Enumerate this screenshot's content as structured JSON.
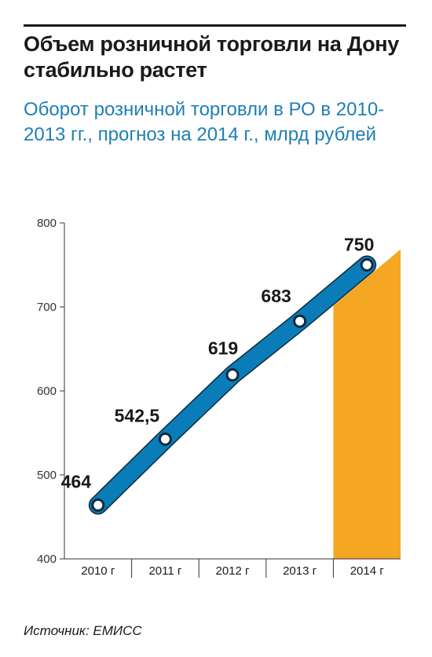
{
  "header": {
    "title": "Объем розничной торговли на Дону стабильно растет",
    "subtitle": "Оборот розничной торговли в РО в 2010-2013 гг., прогноз на 2014 г., млрд рублей"
  },
  "footer": {
    "source": "Источник: ЕМИСС"
  },
  "colors": {
    "line": "#0a7cb8",
    "marker_stroke": "#0e2a3f",
    "forecast_fill": "#f5a623",
    "title": "#1a1a1a",
    "subtitle": "#1f7fb5"
  },
  "chart_data": {
    "type": "line",
    "title": "Объем розничной торговли на Дону стабильно растет",
    "subtitle": "Оборот розничной торговли в РО в 2010-2013 гг., прогноз на 2014 г., млрд рублей",
    "categories": [
      "2010 г",
      "2011 г",
      "2012 г",
      "2013 г",
      "2014 г"
    ],
    "series": [
      {
        "values": [
          464,
          542.5,
          619,
          683,
          750
        ]
      }
    ],
    "data_labels": [
      "464",
      "542,5",
      "619",
      "683",
      "750"
    ],
    "forecast_category": "2014 г",
    "yticks": [
      "400",
      "500",
      "600",
      "700",
      "800"
    ],
    "ylim": [
      400,
      800
    ],
    "grid": false,
    "legend": "none"
  }
}
